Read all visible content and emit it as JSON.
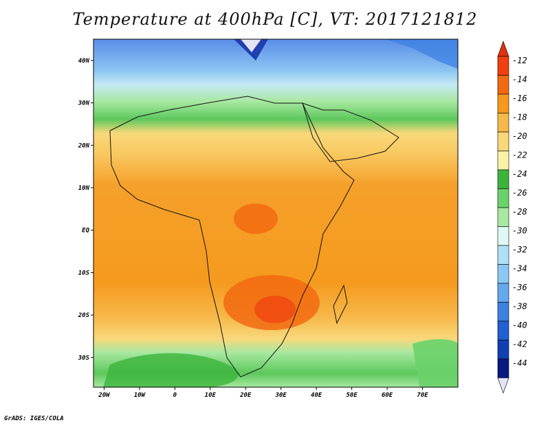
{
  "title": "Temperature at 400hPa [C], VT: 2017121812",
  "credit": "GrADS: IGES/COLA",
  "map": {
    "variable": "Temperature at 400hPa",
    "unit": "C",
    "valid_time": "2017121812",
    "lon_range": [
      -23,
      80
    ],
    "lat_range": [
      -37,
      45
    ],
    "lon_ticks": [
      "20W",
      "10W",
      "0",
      "10E",
      "20E",
      "30E",
      "40E",
      "50E",
      "60E",
      "70E"
    ],
    "lat_ticks": [
      "40N",
      "30N",
      "20N",
      "10N",
      "EQ",
      "10S",
      "20S",
      "30S"
    ]
  },
  "colorbar": {
    "labels": [
      "-12",
      "-14",
      "-16",
      "-18",
      "-20",
      "-22",
      "-24",
      "-26",
      "-28",
      "-30",
      "-32",
      "-34",
      "-36",
      "-38",
      "-40",
      "-42",
      "-44"
    ],
    "colors": [
      "#f04010",
      "#f26a10",
      "#f59a1e",
      "#f7b84a",
      "#f9d87a",
      "#fbf2a8",
      "#3cb43c",
      "#6ad26a",
      "#a8e8a0",
      "#e0f8f4",
      "#b0e0f8",
      "#8cc8f4",
      "#64a8ee",
      "#3c80e2",
      "#2060d0",
      "#1040b4",
      "#0a1a80"
    ],
    "top_arrow_color": "#e03010",
    "bottom_arrow_color": "#e4e4f8"
  }
}
